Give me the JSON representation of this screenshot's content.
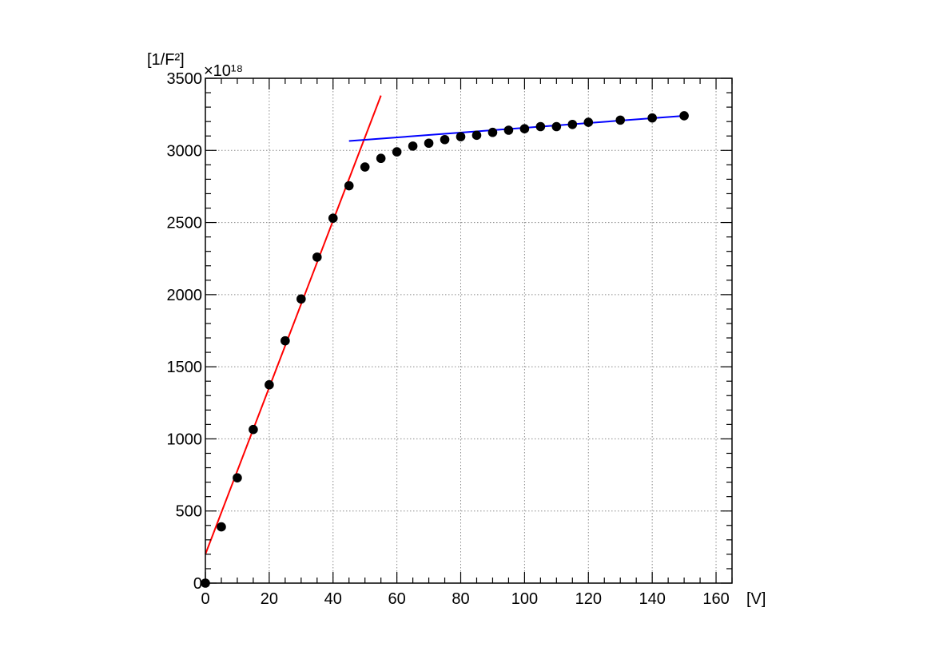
{
  "chart_data": {
    "type": "scatter",
    "title": "",
    "xlabel": "[V]",
    "ylabel": "[1/F²]",
    "y_exponent_label": "×10¹⁸",
    "xlim": [
      0,
      165
    ],
    "ylim": [
      0,
      3500
    ],
    "x_ticks": [
      0,
      20,
      40,
      60,
      80,
      100,
      120,
      140,
      160
    ],
    "y_ticks": [
      0,
      500,
      1000,
      1500,
      2000,
      2500,
      3000,
      3500
    ],
    "x_tick_labels": [
      "0",
      "20",
      "40",
      "60",
      "80",
      "100",
      "120",
      "140",
      "160"
    ],
    "y_tick_labels": [
      "0",
      "500",
      "1000",
      "1500",
      "2000",
      "2500",
      "3000",
      "3500"
    ],
    "grid": true,
    "legend": "none",
    "series": [
      {
        "type": "scatter",
        "color": "#000000",
        "x": [
          0,
          5,
          10,
          15,
          20,
          25,
          30,
          35,
          40,
          45,
          50,
          55,
          60,
          65,
          70,
          75,
          80,
          85,
          90,
          95,
          100,
          105,
          110,
          115,
          120,
          130,
          140,
          150
        ],
        "y": [
          0,
          390,
          730,
          1065,
          1375,
          1680,
          1970,
          2260,
          2530,
          2755,
          2885,
          2945,
          2990,
          3030,
          3050,
          3075,
          3095,
          3105,
          3125,
          3140,
          3150,
          3165,
          3165,
          3180,
          3195,
          3210,
          3225,
          3240
        ]
      },
      {
        "type": "line",
        "color": "#ff0000",
        "x": [
          0,
          55
        ],
        "y": [
          200,
          3380
        ]
      },
      {
        "type": "line",
        "color": "#0000ff",
        "x": [
          45,
          150
        ],
        "y": [
          3065,
          3240
        ]
      }
    ]
  }
}
